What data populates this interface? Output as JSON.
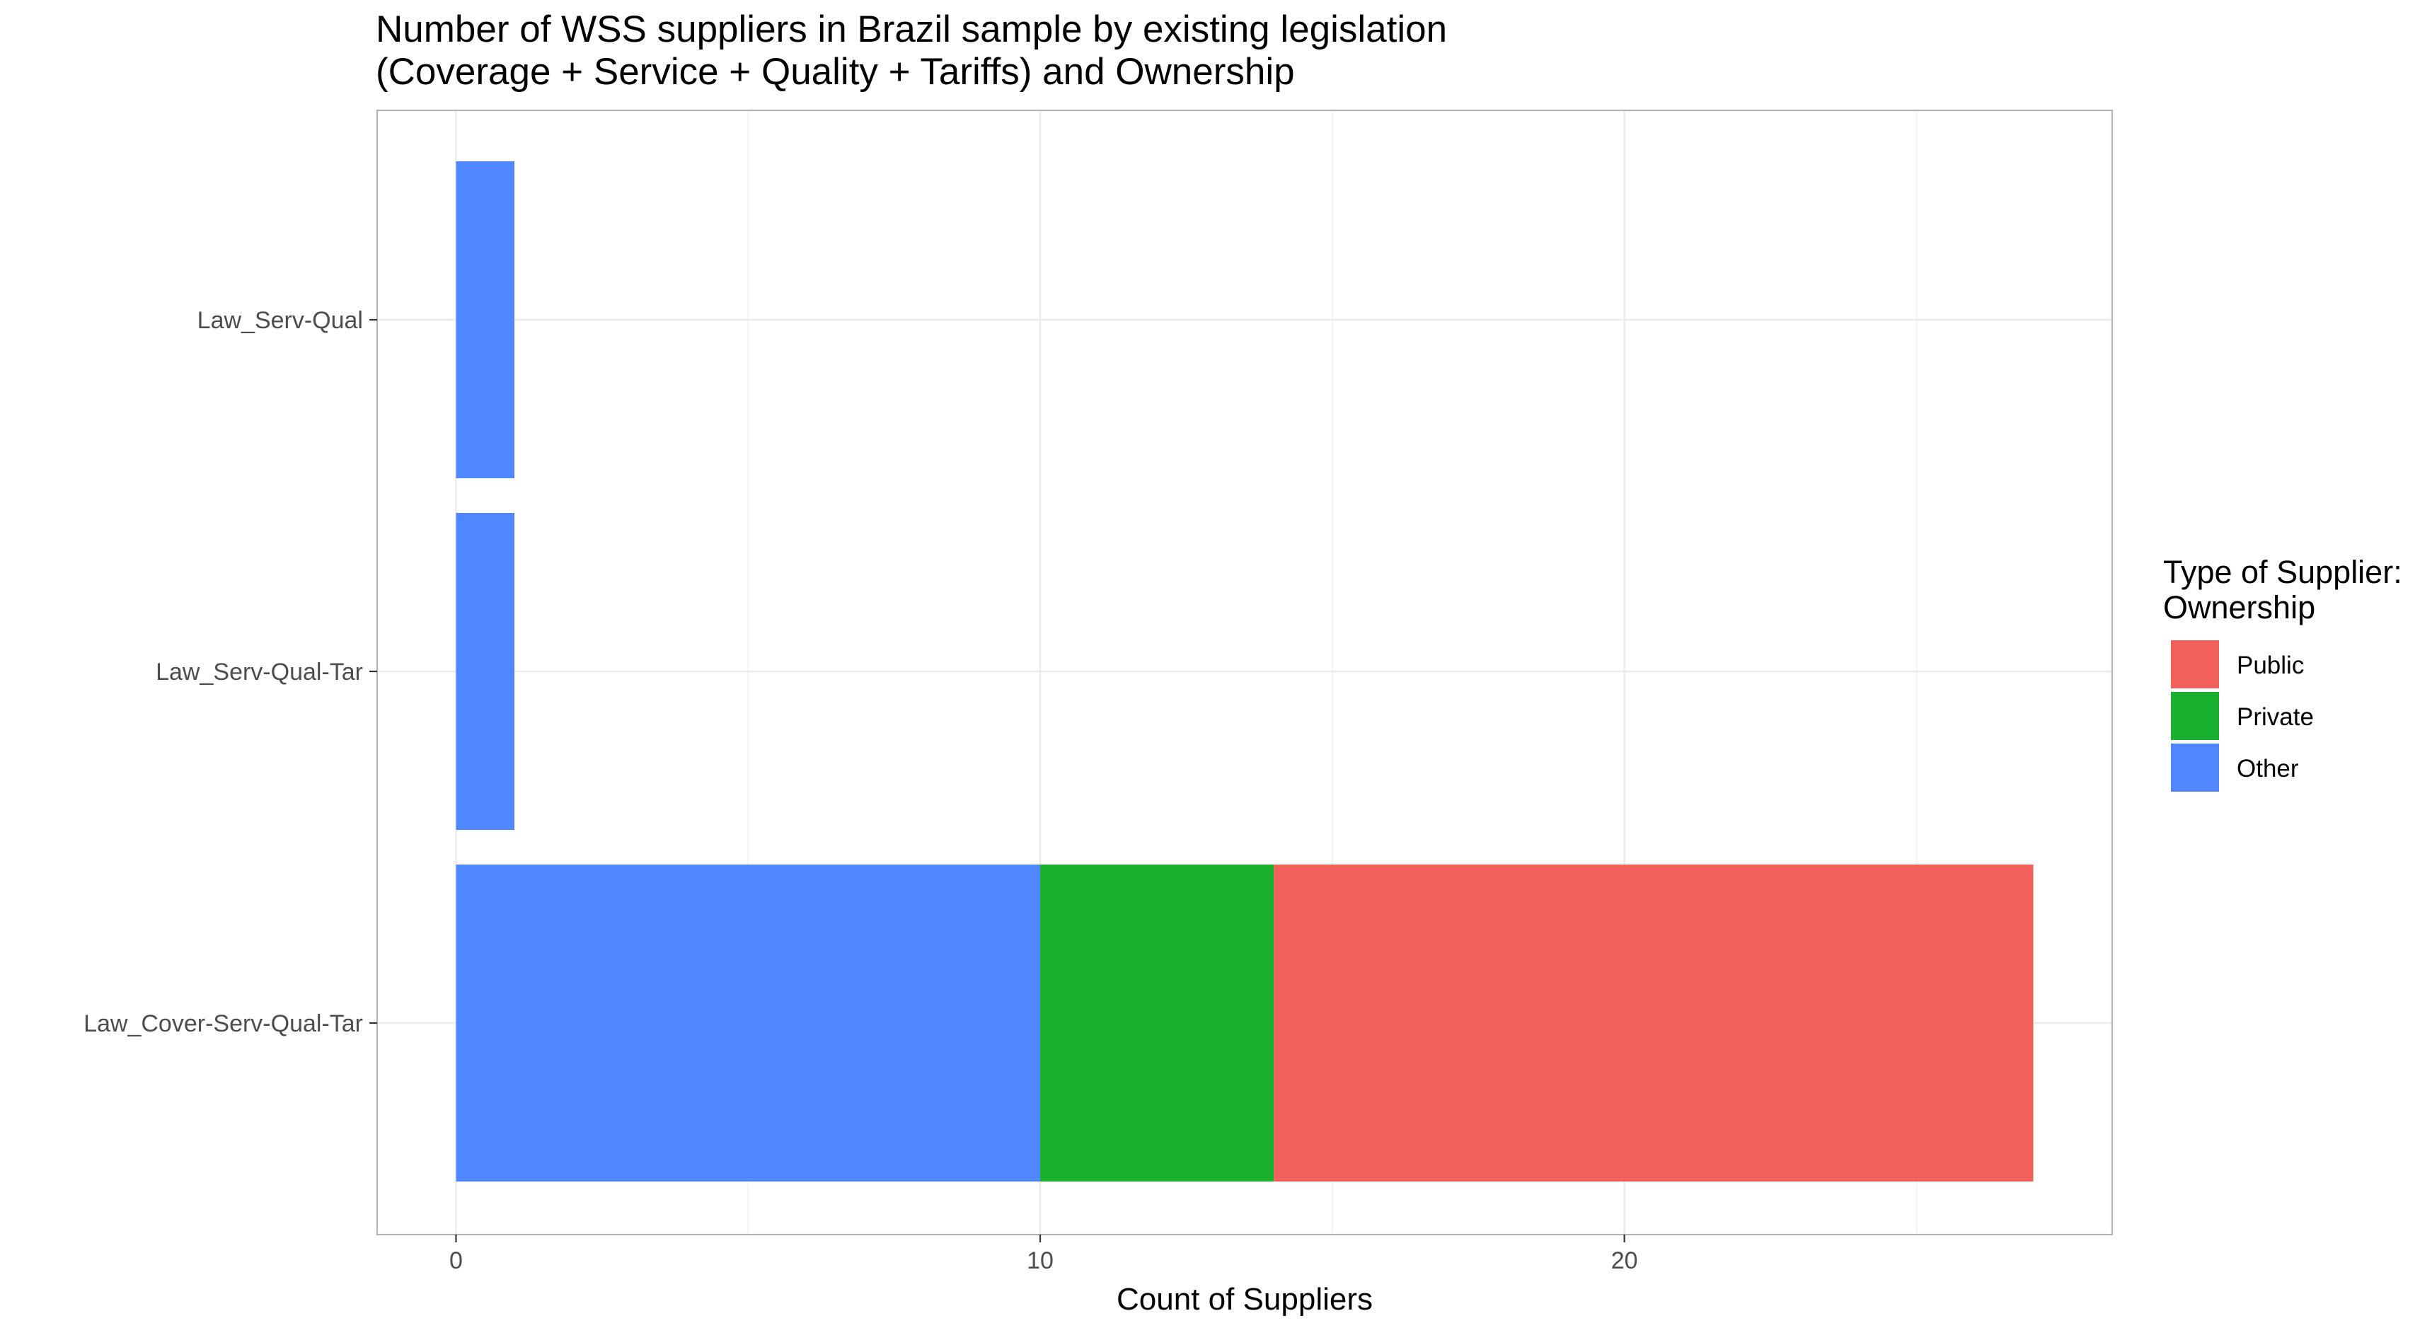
{
  "chart_data": {
    "type": "bar",
    "orientation": "horizontal",
    "stacked": true,
    "title": [
      "Number of WSS suppliers in Brazil sample by existing legislation",
      "(Coverage + Service + Quality + Tariffs) and Ownership"
    ],
    "xlabel": "Count of Suppliers",
    "ylabel": "",
    "categories": [
      "Law_Serv-Qual",
      "Law_Serv-Qual-Tar",
      "Law_Cover-Serv-Qual-Tar"
    ],
    "x_ticks": [
      0,
      10,
      20
    ],
    "xlim": [
      -1.35,
      28.35
    ],
    "grid": true,
    "series": [
      {
        "name": "Other",
        "color": "#5087FF",
        "values": [
          1,
          1,
          10
        ]
      },
      {
        "name": "Private",
        "color": "#19B030",
        "values": [
          0,
          0,
          4
        ]
      },
      {
        "name": "Public",
        "color": "#F2605A",
        "values": [
          0,
          0,
          13
        ]
      }
    ],
    "legend": {
      "title": [
        "Type of Supplier:",
        "Ownership"
      ],
      "placement": "right",
      "items": [
        {
          "label": "Public",
          "color": "#F2605A"
        },
        {
          "label": "Private",
          "color": "#19B030"
        },
        {
          "label": "Other",
          "color": "#5087FF"
        }
      ]
    }
  }
}
